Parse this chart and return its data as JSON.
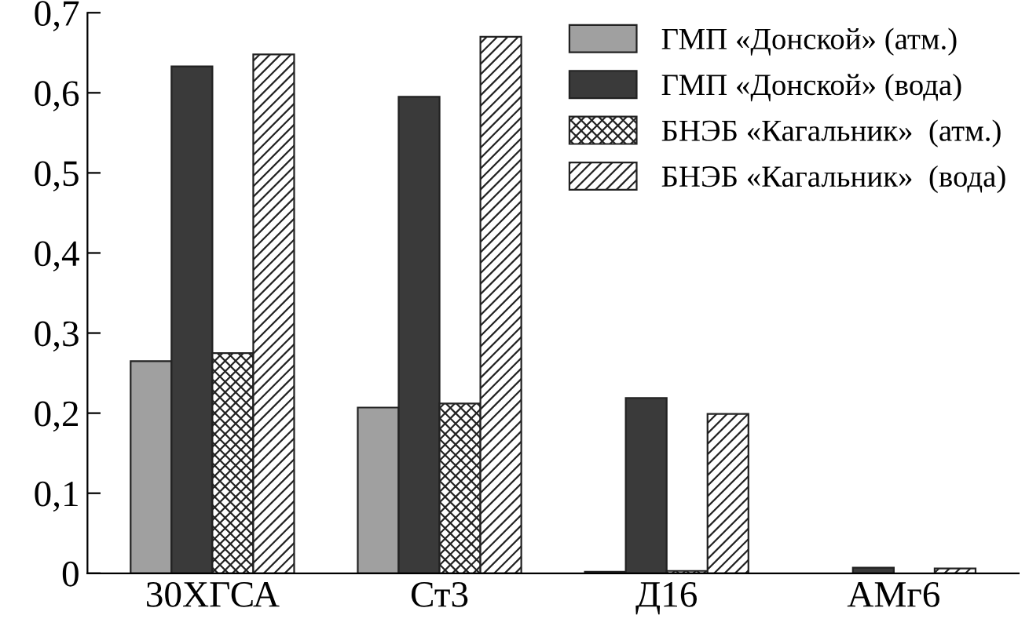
{
  "chart_data": {
    "type": "bar",
    "categories": [
      "30ХГСА",
      "Ст3",
      "Д16",
      "АМг6"
    ],
    "series": [
      {
        "name": "ГМП «Донской» (атм.)",
        "color": "#a0a0a0",
        "values": [
          0.265,
          0.207,
          0.002,
          null
        ]
      },
      {
        "name": "ГМП «Донской» (вода)",
        "color": "#3a3a3a",
        "values": [
          0.633,
          0.595,
          0.219,
          0.007
        ]
      },
      {
        "name": "БНЭБ «Кагальник»  (атм.)",
        "color": "#222222",
        "values": [
          0.275,
          0.212,
          0.003,
          null
        ]
      },
      {
        "name": "БНЭБ «Кагальник»  (вода)",
        "color": "#222222",
        "values": [
          0.648,
          0.67,
          0.199,
          0.006
        ]
      }
    ],
    "ylim": [
      0,
      0.7
    ],
    "yticks": [
      {
        "value": 0,
        "label": "0"
      },
      {
        "value": 0.1,
        "label": "0,1"
      },
      {
        "value": 0.2,
        "label": "0,2"
      },
      {
        "value": 0.3,
        "label": "0,3"
      },
      {
        "value": 0.4,
        "label": "0,4"
      },
      {
        "value": 0.5,
        "label": "0,5"
      },
      {
        "value": 0.6,
        "label": "0,6"
      },
      {
        "value": 0.7,
        "label": "0,7"
      }
    ],
    "grid": false,
    "legend": "top right"
  }
}
